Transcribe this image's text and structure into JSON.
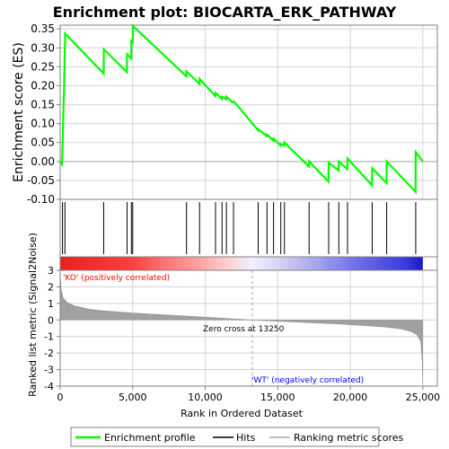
{
  "chart_data": {
    "type": "line",
    "title": "Enrichment plot: BIOCARTA_ERK_PATHWAY",
    "xlabel": "Rank in Ordered Dataset",
    "x_ticks": [
      "0",
      "5,000",
      "10,000",
      "15,000",
      "20,000",
      "25,000"
    ],
    "xlim": [
      0,
      26000
    ],
    "x_tick_values": [
      0,
      5000,
      10000,
      15000,
      20000,
      25000
    ],
    "panels": {
      "enrichment": {
        "ylabel": "Enrichment score (ES)",
        "ylim": [
          -0.1,
          0.36
        ],
        "y_ticks": [
          "-0.10",
          "-0.05",
          "0.00",
          "0.05",
          "0.10",
          "0.15",
          "0.20",
          "0.25",
          "0.30",
          "0.35"
        ],
        "y_tick_values": [
          -0.1,
          -0.05,
          0.0,
          0.05,
          0.1,
          0.15,
          0.2,
          0.25,
          0.3,
          0.35
        ],
        "series": [
          {
            "name": "Enrichment profile",
            "color": "#00ff00",
            "x": [
              0,
              120,
              150,
              250,
              260,
              340,
              3000,
              3010,
              4600,
              4610,
              4900,
              4910,
              5000,
              5010,
              8700,
              8710,
              9600,
              9610,
              10700,
              10710,
              11150,
              11160,
              11450,
              11460,
              11900,
              12000,
              13650,
              13660,
              14250,
              14260,
              14700,
              14710,
              15200,
              15210,
              15450,
              15460,
              17150,
              17160,
              18500,
              18510,
              19200,
              19210,
              19800,
              19810,
              21500,
              21510,
              22500,
              22510,
              24500,
              24510,
              25000
            ],
            "y": [
              0.0,
              -0.007,
              0.015,
              0.175,
              0.17,
              0.338,
              0.232,
              0.296,
              0.236,
              0.283,
              0.272,
              0.318,
              0.315,
              0.358,
              0.225,
              0.238,
              0.205,
              0.218,
              0.173,
              0.181,
              0.165,
              0.171,
              0.164,
              0.171,
              0.156,
              0.158,
              0.082,
              0.085,
              0.067,
              0.071,
              0.055,
              0.06,
              0.042,
              0.046,
              0.043,
              0.05,
              -0.013,
              0.0,
              -0.053,
              -0.003,
              -0.024,
              0.0,
              -0.02,
              0.008,
              -0.063,
              -0.018,
              -0.057,
              0.0,
              -0.08,
              0.025,
              0.0
            ]
          }
        ]
      },
      "hits": {
        "name": "Hits",
        "positions": [
          160,
          330,
          3000,
          4610,
          4910,
          5000,
          8710,
          9610,
          10710,
          11160,
          11460,
          11950,
          13650,
          14260,
          14710,
          15210,
          15460,
          17160,
          18510,
          19210,
          19810,
          21510,
          22510,
          24510
        ]
      },
      "ranked_metric": {
        "name": "Ranking metric scores",
        "ylabel": "Ranked list metric (Signal2Noise)",
        "ylim": [
          -4,
          3
        ],
        "y_ticks": [
          "-4",
          "-3",
          "-2",
          "-1",
          "0",
          "1",
          "2",
          "3"
        ],
        "y_tick_values": [
          -4,
          -3,
          -2,
          -1,
          0,
          1,
          2,
          3
        ],
        "x": [
          0,
          60,
          200,
          500,
          1000,
          2000,
          3000,
          5000,
          7000,
          9000,
          11000,
          13250,
          15000,
          17000,
          19000,
          21000,
          22500,
          23500,
          24200,
          24600,
          24850,
          24950,
          25000
        ],
        "y": [
          2.9,
          1.9,
          1.35,
          1.05,
          0.85,
          0.65,
          0.55,
          0.42,
          0.32,
          0.22,
          0.12,
          0.0,
          -0.08,
          -0.16,
          -0.24,
          -0.34,
          -0.44,
          -0.55,
          -0.7,
          -0.9,
          -1.3,
          -2.3,
          -3.9
        ]
      }
    },
    "annotations": {
      "positive_label": "'KO' (positively correlated)",
      "negative_label": "'WT' (negatively correlated)",
      "zero_cross": "Zero cross at 13250",
      "zero_cross_value": 13250
    },
    "legend": {
      "placement": "bottom",
      "entries": [
        {
          "label": "Enrichment profile",
          "color": "#00ff00"
        },
        {
          "label": "Hits",
          "color": "#000000"
        },
        {
          "label": "Ranking metric scores",
          "color": "#c0c0c0"
        }
      ]
    },
    "colors": {
      "curve": "#00ff00",
      "hits": "#000000",
      "metric_fill": "#a0a0a0",
      "positive_label": "#ff0000",
      "negative_label": "#0000ff",
      "grid": "#d3d3d3"
    },
    "grid": true
  }
}
